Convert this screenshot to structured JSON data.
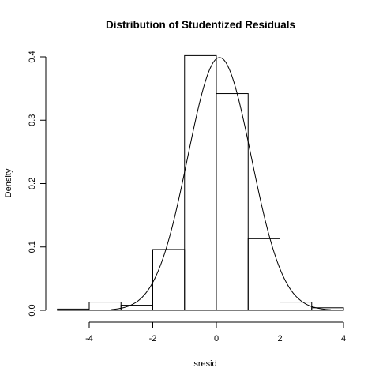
{
  "chart_data": {
    "type": "bar",
    "title": "Distribution of Studentized Residuals",
    "xlabel": "sresid",
    "ylabel": "Density",
    "xlim": [
      -5,
      4
    ],
    "ylim": [
      0,
      0.4
    ],
    "x_ticks": [
      -4,
      -2,
      0,
      2,
      4
    ],
    "y_ticks": [
      0.0,
      0.1,
      0.2,
      0.3,
      0.4
    ],
    "x_tick_labels": [
      "-4",
      "-2",
      "0",
      "2",
      "4"
    ],
    "y_tick_labels": [
      "0.0",
      "0.1",
      "0.2",
      "0.3",
      "0.4"
    ],
    "bins": [
      {
        "from": -5,
        "to": -4,
        "density": 0.002
      },
      {
        "from": -4,
        "to": -3,
        "density": 0.013
      },
      {
        "from": -3,
        "to": -2,
        "density": 0.008
      },
      {
        "from": -2,
        "to": -1,
        "density": 0.096
      },
      {
        "from": -1,
        "to": 0,
        "density": 0.402
      },
      {
        "from": 0,
        "to": 1,
        "density": 0.342
      },
      {
        "from": 1,
        "to": 2,
        "density": 0.113
      },
      {
        "from": 2,
        "to": 3,
        "density": 0.013
      },
      {
        "from": 3,
        "to": 4,
        "density": 0.004
      }
    ],
    "overlay_curve": {
      "type": "normal-density",
      "mean": 0.1,
      "sd": 1.0,
      "from": -3.3,
      "to": 3.6
    },
    "grid": false,
    "legend": "none"
  }
}
